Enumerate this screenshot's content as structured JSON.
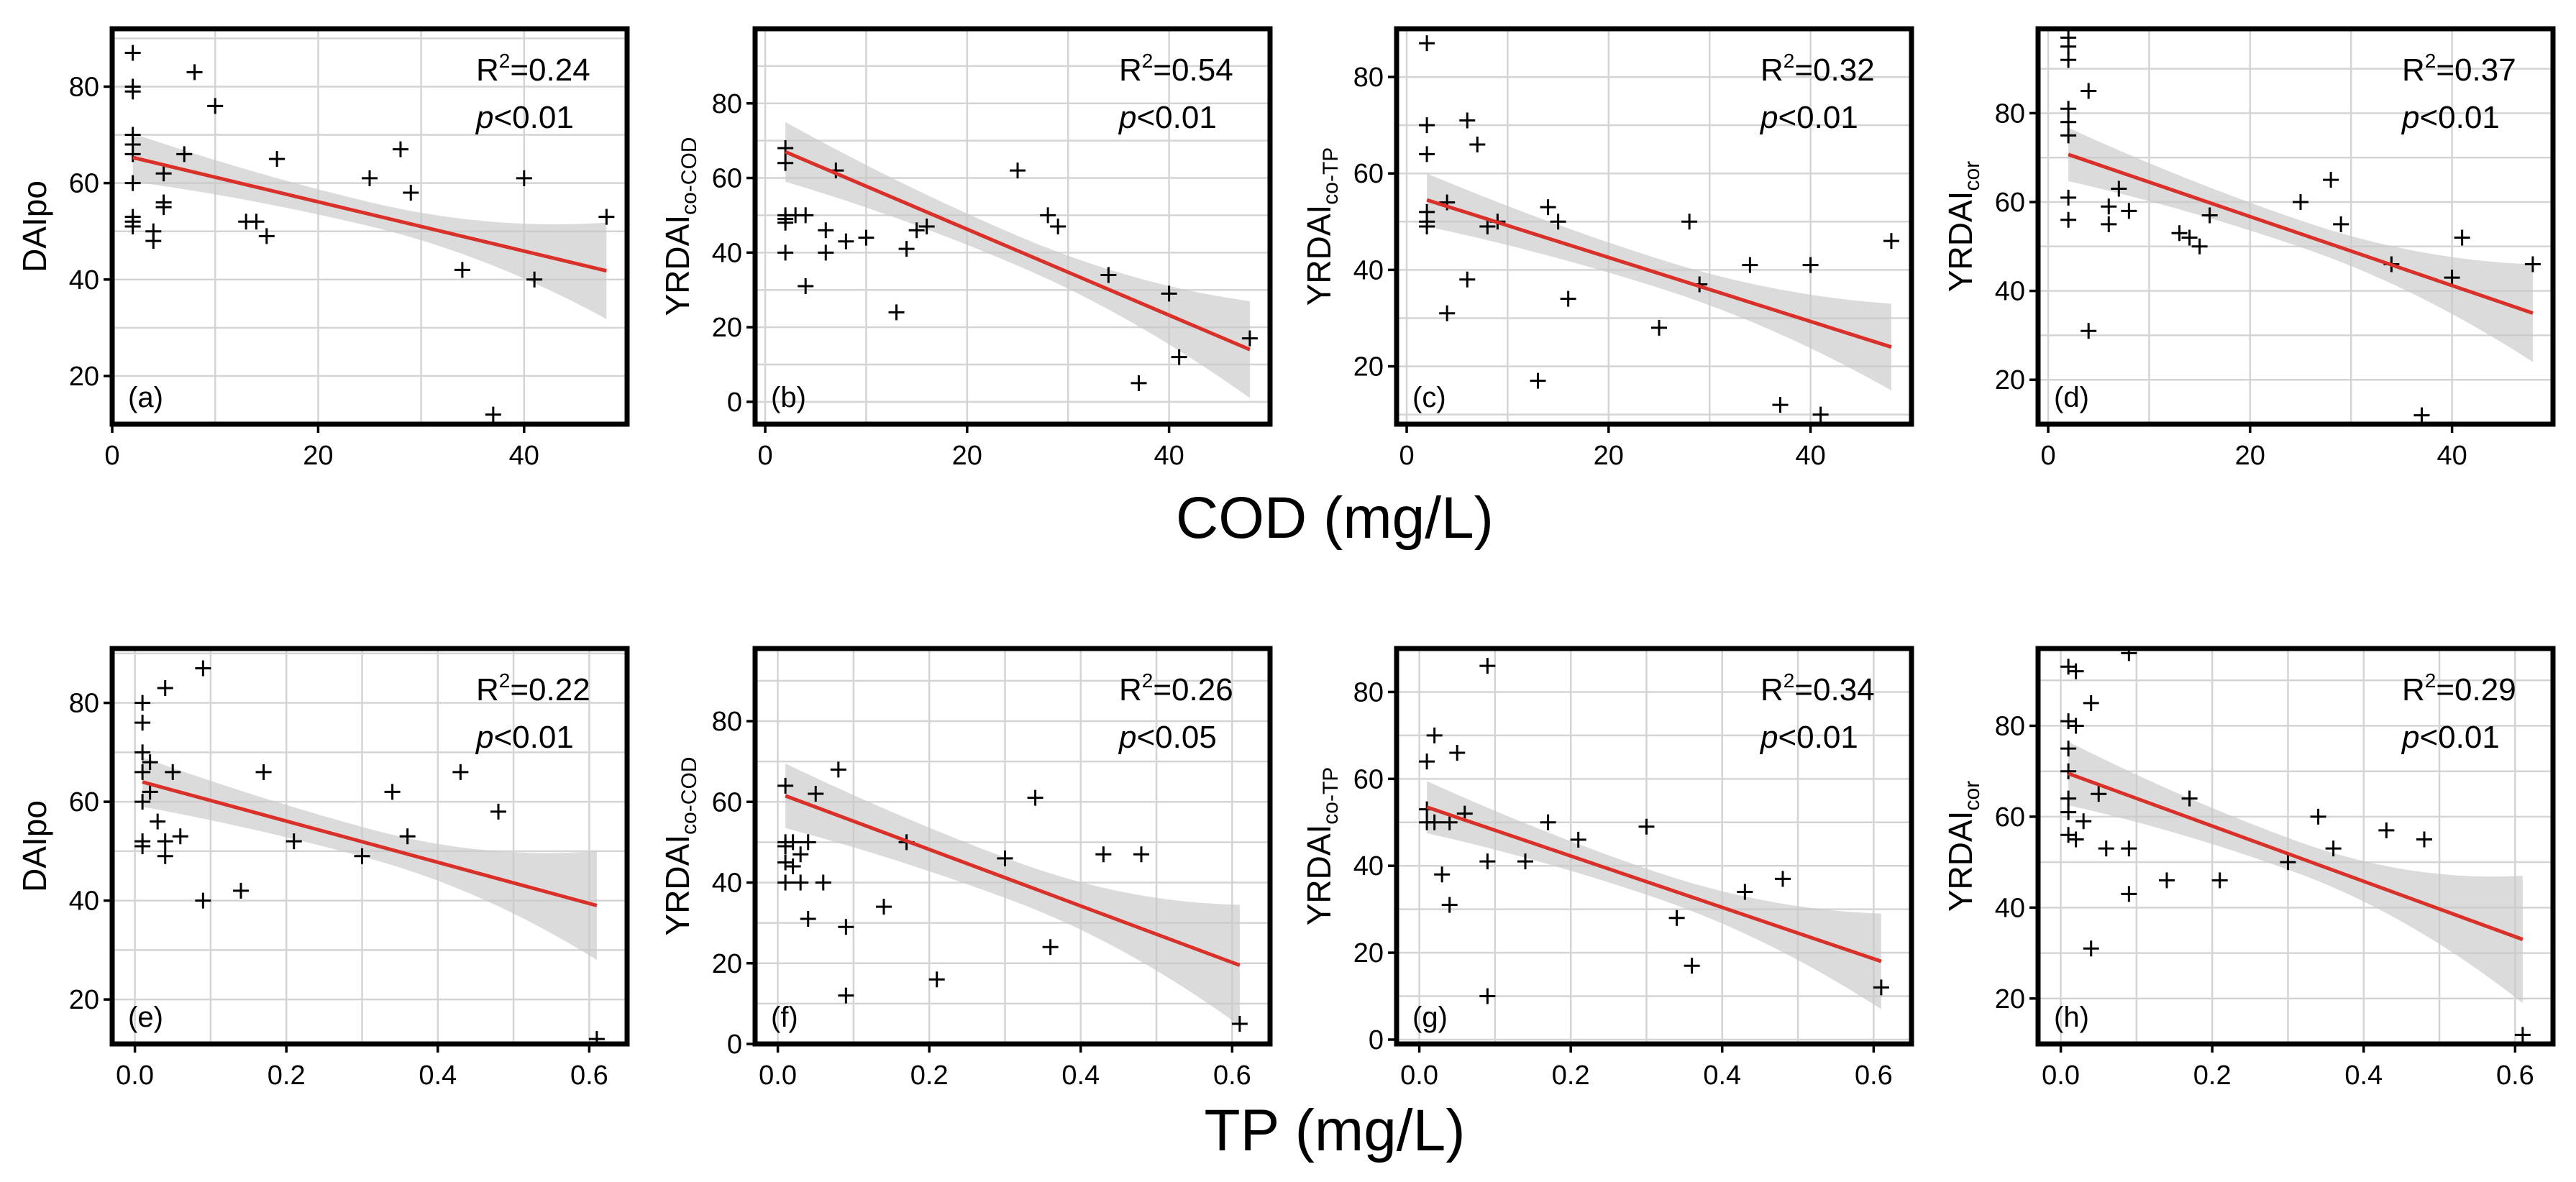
{
  "figure_labels": {
    "cod_xlabel": "COD (mg/L)",
    "tp_xlabel": "TP (mg/L)"
  },
  "chart_data": [
    {
      "panel": "(a)",
      "type": "scatter",
      "xlabel": "COD (mg/L)",
      "ylabel": "DAIpo",
      "ylabel_sub": "",
      "xlim": [
        0,
        50
      ],
      "ylim": [
        10,
        92
      ],
      "xticks": [
        0,
        20,
        40
      ],
      "yticks": [
        20,
        40,
        60,
        80
      ],
      "r2": "0.24",
      "p": "<0.01",
      "points": [
        [
          2,
          87
        ],
        [
          2,
          80
        ],
        [
          2,
          79
        ],
        [
          2,
          70
        ],
        [
          2,
          68
        ],
        [
          2,
          66
        ],
        [
          2,
          60
        ],
        [
          2,
          53
        ],
        [
          2,
          52
        ],
        [
          2,
          51
        ],
        [
          4,
          50
        ],
        [
          4,
          48
        ],
        [
          5,
          56
        ],
        [
          5,
          62
        ],
        [
          5,
          55
        ],
        [
          7,
          66
        ],
        [
          8,
          83
        ],
        [
          10,
          76
        ],
        [
          13,
          52
        ],
        [
          14,
          52
        ],
        [
          15,
          49
        ],
        [
          16,
          65
        ],
        [
          25,
          61
        ],
        [
          28,
          67
        ],
        [
          29,
          58
        ],
        [
          34,
          42
        ],
        [
          37,
          12
        ],
        [
          40,
          61
        ],
        [
          41,
          40
        ],
        [
          48,
          53
        ]
      ],
      "fit": [
        [
          2,
          65.3
        ],
        [
          48,
          41.8
        ]
      ],
      "band_hw": [
        5,
        2.5,
        10
      ]
    },
    {
      "panel": "(b)",
      "type": "scatter",
      "xlabel": "COD (mg/L)",
      "ylabel": "YRDAI",
      "ylabel_sub": "co-COD",
      "xlim": [
        -1,
        50
      ],
      "ylim": [
        -6,
        100
      ],
      "xticks": [
        0,
        20,
        40
      ],
      "yticks": [
        0,
        20,
        40,
        60,
        80
      ],
      "r2": "0.54",
      "p": "<0.01",
      "points": [
        [
          2,
          68
        ],
        [
          2,
          64
        ],
        [
          2,
          50
        ],
        [
          2,
          49
        ],
        [
          2,
          48
        ],
        [
          3,
          50
        ],
        [
          2,
          40
        ],
        [
          4,
          50
        ],
        [
          4,
          31
        ],
        [
          6,
          46
        ],
        [
          6,
          40
        ],
        [
          7,
          62
        ],
        [
          8,
          43
        ],
        [
          10,
          44
        ],
        [
          13,
          24
        ],
        [
          14,
          41
        ],
        [
          15,
          46
        ],
        [
          16,
          47
        ],
        [
          25,
          62
        ],
        [
          28,
          50
        ],
        [
          29,
          47
        ],
        [
          34,
          34
        ],
        [
          37,
          5
        ],
        [
          40,
          29
        ],
        [
          41,
          12
        ],
        [
          48,
          17
        ]
      ],
      "fit": [
        [
          2,
          67
        ],
        [
          48,
          14
        ]
      ],
      "band_hw": [
        8,
        4,
        13
      ]
    },
    {
      "panel": "(c)",
      "type": "scatter",
      "xlabel": "COD (mg/L)",
      "ylabel": "YRDAI",
      "ylabel_sub": "co-TP",
      "xlim": [
        -1,
        50
      ],
      "ylim": [
        8,
        90
      ],
      "xticks": [
        0,
        20,
        40
      ],
      "yticks": [
        20,
        40,
        60,
        80
      ],
      "r2": "0.32",
      "p": "<0.01",
      "points": [
        [
          2,
          87
        ],
        [
          2,
          70
        ],
        [
          2,
          64
        ],
        [
          2,
          52
        ],
        [
          2,
          50
        ],
        [
          2,
          49
        ],
        [
          4,
          54
        ],
        [
          4,
          31
        ],
        [
          6,
          71
        ],
        [
          6,
          38
        ],
        [
          7,
          66
        ],
        [
          8,
          49
        ],
        [
          9,
          50
        ],
        [
          13,
          17
        ],
        [
          14,
          53
        ],
        [
          15,
          50
        ],
        [
          16,
          34
        ],
        [
          25,
          28
        ],
        [
          28,
          50
        ],
        [
          29,
          37
        ],
        [
          34,
          41
        ],
        [
          37,
          12
        ],
        [
          40,
          41
        ],
        [
          41,
          10
        ],
        [
          48,
          46
        ]
      ],
      "fit": [
        [
          2,
          54.5
        ],
        [
          48,
          24
        ]
      ],
      "band_hw": [
        5.5,
        3,
        9
      ]
    },
    {
      "panel": "(d)",
      "type": "scatter",
      "xlabel": "COD (mg/L)",
      "ylabel": "YRDAI",
      "ylabel_sub": "cor",
      "xlim": [
        -1,
        50
      ],
      "ylim": [
        10,
        99
      ],
      "xticks": [
        0,
        20,
        40
      ],
      "yticks": [
        20,
        40,
        60,
        80
      ],
      "r2": "0.37",
      "p": "<0.01",
      "points": [
        [
          2,
          97
        ],
        [
          2,
          95
        ],
        [
          2,
          92
        ],
        [
          2,
          81
        ],
        [
          2,
          78
        ],
        [
          2,
          75
        ],
        [
          2,
          61
        ],
        [
          2,
          56
        ],
        [
          4,
          85
        ],
        [
          4,
          31
        ],
        [
          6,
          59
        ],
        [
          6,
          55
        ],
        [
          7,
          63
        ],
        [
          8,
          58
        ],
        [
          13,
          53
        ],
        [
          14,
          52
        ],
        [
          15,
          50
        ],
        [
          16,
          57
        ],
        [
          25,
          60
        ],
        [
          28,
          65
        ],
        [
          29,
          55
        ],
        [
          34,
          46
        ],
        [
          37,
          12
        ],
        [
          40,
          43
        ],
        [
          41,
          52
        ],
        [
          48,
          46
        ]
      ],
      "fit": [
        [
          2,
          70.7
        ],
        [
          48,
          35
        ]
      ],
      "band_hw": [
        6,
        3,
        11
      ]
    },
    {
      "panel": "(e)",
      "type": "scatter",
      "xlabel": "TP (mg/L)",
      "ylabel": "DAIpo",
      "ylabel_sub": "",
      "xlim": [
        -0.03,
        0.65
      ],
      "ylim": [
        11,
        91
      ],
      "xticks": [
        0.0,
        0.2,
        0.4,
        0.6
      ],
      "yticks": [
        20,
        40,
        60,
        80
      ],
      "r2": "0.22",
      "p": "<0.01",
      "points": [
        [
          0.01,
          80
        ],
        [
          0.01,
          76
        ],
        [
          0.01,
          70
        ],
        [
          0.01,
          66
        ],
        [
          0.01,
          60
        ],
        [
          0.01,
          52
        ],
        [
          0.01,
          51
        ],
        [
          0.02,
          68
        ],
        [
          0.02,
          62
        ],
        [
          0.03,
          56
        ],
        [
          0.04,
          49
        ],
        [
          0.04,
          52
        ],
        [
          0.04,
          83
        ],
        [
          0.05,
          66
        ],
        [
          0.06,
          53
        ],
        [
          0.09,
          87
        ],
        [
          0.09,
          40
        ],
        [
          0.14,
          42
        ],
        [
          0.17,
          66
        ],
        [
          0.21,
          52
        ],
        [
          0.3,
          49
        ],
        [
          0.34,
          62
        ],
        [
          0.36,
          53
        ],
        [
          0.43,
          66
        ],
        [
          0.48,
          58
        ],
        [
          0.61,
          12
        ]
      ],
      "fit": [
        [
          0.01,
          64
        ],
        [
          0.61,
          39
        ]
      ],
      "band_hw": [
        5,
        3,
        11
      ]
    },
    {
      "panel": "(f)",
      "type": "scatter",
      "xlabel": "TP (mg/L)",
      "ylabel": "YRDAI",
      "ylabel_sub": "co-COD",
      "xlim": [
        -0.03,
        0.65
      ],
      "ylim": [
        0,
        98
      ],
      "xticks": [
        0.0,
        0.2,
        0.4,
        0.6
      ],
      "yticks": [
        0,
        20,
        40,
        60,
        80
      ],
      "r2": "0.26",
      "p": "<0.05",
      "points": [
        [
          0.01,
          64
        ],
        [
          0.01,
          50
        ],
        [
          0.01,
          49
        ],
        [
          0.01,
          45
        ],
        [
          0.01,
          40
        ],
        [
          0.02,
          50
        ],
        [
          0.02,
          44
        ],
        [
          0.03,
          47
        ],
        [
          0.03,
          40
        ],
        [
          0.04,
          50
        ],
        [
          0.04,
          31
        ],
        [
          0.05,
          62
        ],
        [
          0.06,
          40
        ],
        [
          0.08,
          68
        ],
        [
          0.09,
          29
        ],
        [
          0.09,
          12
        ],
        [
          0.14,
          34
        ],
        [
          0.17,
          50
        ],
        [
          0.21,
          16
        ],
        [
          0.3,
          46
        ],
        [
          0.34,
          61
        ],
        [
          0.36,
          24
        ],
        [
          0.43,
          47
        ],
        [
          0.48,
          47
        ],
        [
          0.61,
          5
        ]
      ],
      "fit": [
        [
          0.01,
          61.5
        ],
        [
          0.61,
          19.5
        ]
      ],
      "band_hw": [
        8,
        5,
        15
      ]
    },
    {
      "panel": "(g)",
      "type": "scatter",
      "xlabel": "TP (mg/L)",
      "ylabel": "YRDAI",
      "ylabel_sub": "co-TP",
      "xlim": [
        -0.03,
        0.65
      ],
      "ylim": [
        -1,
        90
      ],
      "xticks": [
        0.0,
        0.2,
        0.4,
        0.6
      ],
      "yticks": [
        0,
        20,
        40,
        60,
        80
      ],
      "r2": "0.34",
      "p": "<0.01",
      "points": [
        [
          0.01,
          64
        ],
        [
          0.01,
          53
        ],
        [
          0.01,
          50
        ],
        [
          0.02,
          70
        ],
        [
          0.02,
          50
        ],
        [
          0.03,
          38
        ],
        [
          0.04,
          50
        ],
        [
          0.04,
          31
        ],
        [
          0.05,
          66
        ],
        [
          0.06,
          52
        ],
        [
          0.09,
          86
        ],
        [
          0.09,
          41
        ],
        [
          0.09,
          10
        ],
        [
          0.14,
          41
        ],
        [
          0.17,
          50
        ],
        [
          0.21,
          46
        ],
        [
          0.3,
          49
        ],
        [
          0.34,
          28
        ],
        [
          0.36,
          17
        ],
        [
          0.43,
          34
        ],
        [
          0.48,
          37
        ],
        [
          0.61,
          12
        ]
      ],
      "fit": [
        [
          0.01,
          53.5
        ],
        [
          0.61,
          18
        ]
      ],
      "band_hw": [
        6,
        3,
        11
      ]
    },
    {
      "panel": "(h)",
      "type": "scatter",
      "xlabel": "TP (mg/L)",
      "ylabel": "YRDAI",
      "ylabel_sub": "cor",
      "xlim": [
        -0.03,
        0.65
      ],
      "ylim": [
        10,
        97
      ],
      "xticks": [
        0.0,
        0.2,
        0.4,
        0.6
      ],
      "yticks": [
        20,
        40,
        60,
        80
      ],
      "r2": "0.29",
      "p": "<0.01",
      "points": [
        [
          0.01,
          93
        ],
        [
          0.01,
          81
        ],
        [
          0.01,
          75
        ],
        [
          0.01,
          70
        ],
        [
          0.01,
          64
        ],
        [
          0.01,
          61
        ],
        [
          0.01,
          56
        ],
        [
          0.02,
          92
        ],
        [
          0.02,
          80
        ],
        [
          0.02,
          55
        ],
        [
          0.03,
          59
        ],
        [
          0.04,
          85
        ],
        [
          0.04,
          31
        ],
        [
          0.05,
          65
        ],
        [
          0.06,
          53
        ],
        [
          0.09,
          96
        ],
        [
          0.09,
          53
        ],
        [
          0.09,
          43
        ],
        [
          0.14,
          46
        ],
        [
          0.17,
          64
        ],
        [
          0.21,
          46
        ],
        [
          0.3,
          50
        ],
        [
          0.34,
          60
        ],
        [
          0.36,
          53
        ],
        [
          0.43,
          57
        ],
        [
          0.48,
          55
        ],
        [
          0.61,
          12
        ]
      ],
      "fit": [
        [
          0.01,
          69.5
        ],
        [
          0.61,
          33
        ]
      ],
      "band_hw": [
        7,
        3.5,
        14
      ]
    }
  ]
}
